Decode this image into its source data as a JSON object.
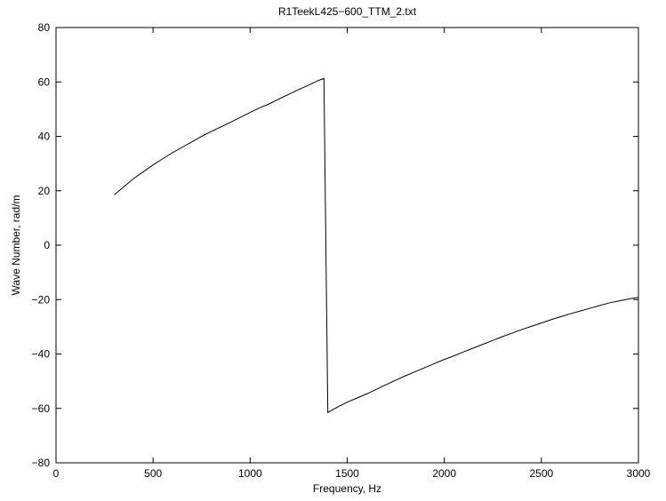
{
  "chart_data": {
    "type": "line",
    "title": "R1TeekL425−600_TTM_2.txt",
    "xlabel": "Frequency, Hz",
    "ylabel": "Wave Number, rad/m",
    "xlim": [
      0,
      3000
    ],
    "ylim": [
      -80,
      80
    ],
    "xticks": [
      0,
      500,
      1000,
      1500,
      2000,
      2500,
      3000
    ],
    "yticks": [
      -80,
      -60,
      -40,
      -20,
      0,
      20,
      40,
      60,
      80
    ],
    "xtick_labels": [
      "0",
      "500",
      "1000",
      "1500",
      "2000",
      "2500",
      "3000"
    ],
    "ytick_labels": [
      "−80",
      "−60",
      "−40",
      "−20",
      "0",
      "20",
      "40",
      "60",
      "80"
    ],
    "grid": false,
    "series": [
      {
        "color": "#000000",
        "x": [
          300,
          350,
          400,
          450,
          500,
          550,
          600,
          650,
          700,
          750,
          800,
          850,
          900,
          950,
          1000,
          1050,
          1100,
          1150,
          1200,
          1250,
          1300,
          1350,
          1380,
          1400,
          1450,
          1500,
          1550,
          1600,
          1650,
          1700,
          1750,
          1800,
          1850,
          1900,
          1950,
          2000,
          2050,
          2100,
          2150,
          2200,
          2250,
          2300,
          2350,
          2400,
          2450,
          2500,
          2550,
          2600,
          2650,
          2700,
          2750,
          2800,
          2850,
          2900,
          2950,
          3000
        ],
        "y": [
          18.5,
          21.5,
          24.5,
          27,
          29.5,
          31.8,
          34,
          36,
          38,
          40,
          41.8,
          43.5,
          45.2,
          47,
          48.8,
          50.5,
          52,
          53.8,
          55.5,
          57.2,
          58.8,
          60.5,
          61.3,
          -61.5,
          -59.5,
          -57.7,
          -56.2,
          -54.7,
          -53,
          -51.3,
          -49.6,
          -48,
          -46.5,
          -45,
          -43.5,
          -42,
          -40.7,
          -39.2,
          -37.8,
          -36.4,
          -35,
          -33.6,
          -32.3,
          -31,
          -29.8,
          -28.6,
          -27.4,
          -26.3,
          -25.2,
          -24.2,
          -23.2,
          -22.2,
          -21.2,
          -20.5,
          -19.8,
          -19.2
        ]
      }
    ]
  }
}
